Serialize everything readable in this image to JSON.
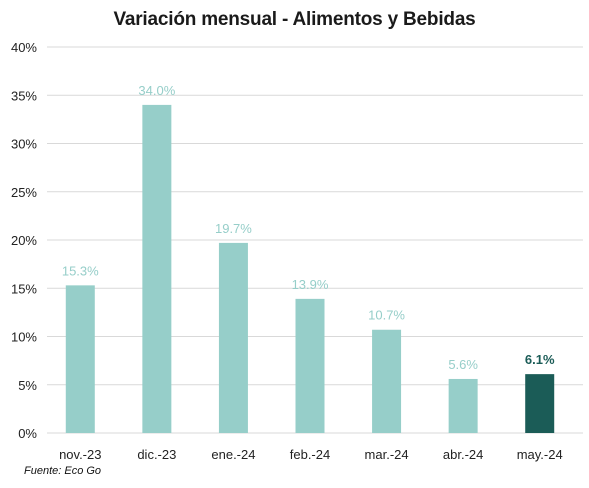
{
  "chart_data": {
    "type": "bar",
    "title": "Variación mensual - Alimentos y Bebidas",
    "xlabel": "",
    "ylabel": "",
    "categories": [
      "nov.-23",
      "dic.-23",
      "ene.-24",
      "feb.-24",
      "mar.-24",
      "abr.-24",
      "may.-24"
    ],
    "values": [
      15.3,
      34.0,
      19.7,
      13.9,
      10.7,
      5.6,
      6.1
    ],
    "data_labels": [
      "15.3%",
      "34.0%",
      "19.7%",
      "13.9%",
      "10.7%",
      "5.6%",
      "6.1%"
    ],
    "ylim": [
      0,
      40
    ],
    "yticks": [
      0,
      5,
      10,
      15,
      20,
      25,
      30,
      35,
      40
    ],
    "ytick_labels": [
      "0%",
      "5%",
      "10%",
      "15%",
      "20%",
      "25%",
      "30%",
      "35%",
      "40%"
    ],
    "grid": true,
    "legend": "none",
    "colors": {
      "bar": "#96cec9",
      "highlight_bar": "#1b5c57",
      "label": "#96cec9",
      "highlight_label": "#1b5c57",
      "grid": "#d9d9d9"
    },
    "highlight_index": 6
  },
  "source": "Fuente: Eco Go"
}
